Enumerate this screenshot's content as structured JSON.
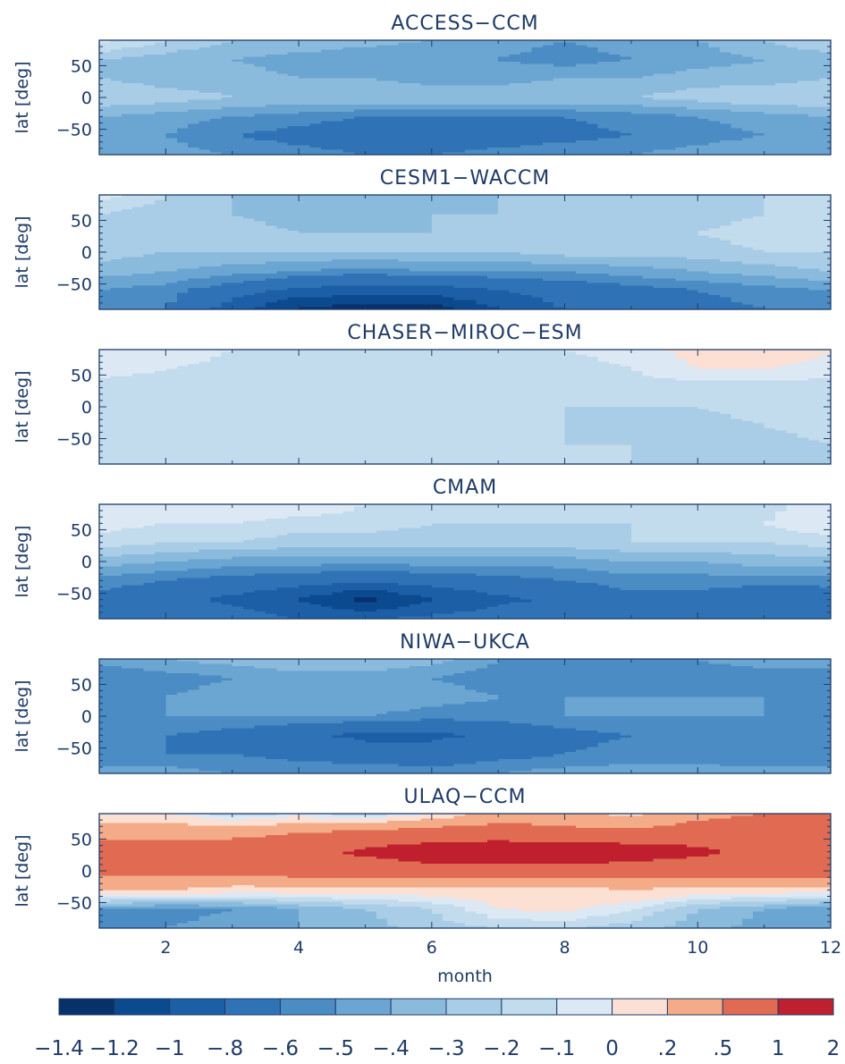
{
  "chart_data": {
    "type": "heatmap",
    "xlabel": "month",
    "ylabel": "lat [deg]",
    "xlim": [
      1,
      12
    ],
    "ylim": [
      -90,
      90
    ],
    "x_ticks": [
      "2",
      "4",
      "6",
      "8",
      "10",
      "12"
    ],
    "y_ticks": [
      "50",
      "0",
      "−50"
    ],
    "colorbar": {
      "levels": [
        "−1.4",
        "−1.2",
        "−1",
        "−.8",
        "−.6",
        "−.5",
        "−.4",
        "−.3",
        "−.2",
        "−.1",
        "0",
        ".2",
        ".5",
        "1",
        "2"
      ],
      "colors": [
        "#08306b",
        "#0b4a8f",
        "#1c5fa7",
        "#2f73b6",
        "#4a8cc3",
        "#6ba5d1",
        "#8bbbdc",
        "#a9cde6",
        "#c2dcee",
        "#dce9f4",
        "#fbe0d3",
        "#f4ab87",
        "#e06b52",
        "#c0202e"
      ]
    },
    "months": [
      1,
      2,
      3,
      4,
      5,
      6,
      7,
      8,
      9,
      10,
      11,
      12
    ],
    "latitudes": [
      90,
      60,
      30,
      0,
      -30,
      -60,
      -90
    ],
    "panels": [
      {
        "title": "ACCESS−CCM",
        "values": [
          [
            -0.05,
            -0.2,
            -0.3,
            -0.3,
            -0.35,
            -0.4,
            -0.45,
            -0.5,
            -0.45,
            -0.4,
            -0.3,
            -0.2
          ],
          [
            -0.3,
            -0.35,
            -0.4,
            -0.45,
            -0.5,
            -0.5,
            -0.5,
            -0.55,
            -0.5,
            -0.45,
            -0.4,
            -0.35
          ],
          [
            -0.3,
            -0.35,
            -0.35,
            -0.4,
            -0.4,
            -0.45,
            -0.45,
            -0.4,
            -0.4,
            -0.35,
            -0.35,
            -0.3
          ],
          [
            -0.2,
            -0.25,
            -0.3,
            -0.3,
            -0.3,
            -0.3,
            -0.3,
            -0.3,
            -0.3,
            -0.25,
            -0.2,
            -0.2
          ],
          [
            -0.4,
            -0.45,
            -0.5,
            -0.55,
            -0.6,
            -0.6,
            -0.6,
            -0.6,
            -0.55,
            -0.5,
            -0.45,
            -0.4
          ],
          [
            -0.5,
            -0.5,
            -0.6,
            -0.65,
            -0.7,
            -0.7,
            -0.7,
            -0.65,
            -0.6,
            -0.55,
            -0.5,
            -0.45
          ],
          [
            -0.4,
            -0.45,
            -0.5,
            -0.55,
            -0.6,
            -0.6,
            -0.55,
            -0.5,
            -0.5,
            -0.45,
            -0.4,
            -0.4
          ]
        ]
      },
      {
        "title": "CESM1−WACCM",
        "values": [
          [
            -0.05,
            -0.2,
            -0.3,
            -0.35,
            -0.4,
            -0.35,
            -0.3,
            -0.25,
            -0.2,
            -0.2,
            -0.2,
            -0.15
          ],
          [
            -0.2,
            -0.25,
            -0.3,
            -0.35,
            -0.35,
            -0.3,
            -0.3,
            -0.25,
            -0.25,
            -0.25,
            -0.2,
            -0.2
          ],
          [
            -0.2,
            -0.25,
            -0.25,
            -0.3,
            -0.3,
            -0.3,
            -0.25,
            -0.25,
            -0.25,
            -0.2,
            -0.15,
            -0.15
          ],
          [
            -0.25,
            -0.3,
            -0.3,
            -0.3,
            -0.3,
            -0.3,
            -0.3,
            -0.25,
            -0.25,
            -0.25,
            -0.2,
            -0.2
          ],
          [
            -0.35,
            -0.4,
            -0.45,
            -0.5,
            -0.55,
            -0.5,
            -0.5,
            -0.5,
            -0.45,
            -0.4,
            -0.35,
            -0.3
          ],
          [
            -0.5,
            -0.55,
            -0.7,
            -0.85,
            -0.9,
            -0.9,
            -0.8,
            -0.7,
            -0.65,
            -0.6,
            -0.55,
            -0.5
          ],
          [
            -0.55,
            -0.6,
            -0.9,
            -1.25,
            -1.3,
            -1.3,
            -1.0,
            -0.8,
            -0.7,
            -0.65,
            -0.6,
            -0.55
          ]
        ]
      },
      {
        "title": "CHASER−MIROC−ESM",
        "values": [
          [
            0.0,
            0.0,
            -0.1,
            -0.15,
            -0.2,
            -0.15,
            -0.15,
            -0.1,
            -0.05,
            0.05,
            0.15,
            0.0
          ],
          [
            -0.05,
            -0.1,
            -0.15,
            -0.15,
            -0.15,
            -0.15,
            -0.15,
            -0.15,
            -0.1,
            0.0,
            0.0,
            -0.05
          ],
          [
            -0.15,
            -0.15,
            -0.2,
            -0.2,
            -0.2,
            -0.2,
            -0.2,
            -0.2,
            -0.15,
            -0.15,
            -0.15,
            -0.15
          ],
          [
            -0.15,
            -0.15,
            -0.2,
            -0.2,
            -0.2,
            -0.2,
            -0.2,
            -0.2,
            -0.2,
            -0.2,
            -0.15,
            -0.15
          ],
          [
            -0.15,
            -0.2,
            -0.2,
            -0.2,
            -0.2,
            -0.2,
            -0.2,
            -0.2,
            -0.25,
            -0.25,
            -0.2,
            -0.15
          ],
          [
            -0.2,
            -0.2,
            -0.2,
            -0.2,
            -0.2,
            -0.2,
            -0.2,
            -0.2,
            -0.2,
            -0.25,
            -0.25,
            -0.2
          ],
          [
            -0.2,
            -0.2,
            -0.2,
            -0.2,
            -0.2,
            -0.2,
            -0.2,
            -0.2,
            -0.2,
            -0.2,
            -0.25,
            -0.25
          ]
        ]
      },
      {
        "title": "CMAM",
        "values": [
          [
            0.0,
            0.0,
            0.0,
            0.0,
            -0.1,
            -0.15,
            -0.15,
            -0.15,
            -0.15,
            -0.1,
            -0.15,
            0.0
          ],
          [
            -0.05,
            -0.1,
            -0.1,
            -0.15,
            -0.15,
            -0.2,
            -0.2,
            -0.2,
            -0.2,
            -0.15,
            -0.1,
            0.0
          ],
          [
            -0.15,
            -0.2,
            -0.2,
            -0.25,
            -0.25,
            -0.25,
            -0.25,
            -0.25,
            -0.2,
            -0.2,
            -0.2,
            -0.15
          ],
          [
            -0.35,
            -0.4,
            -0.45,
            -0.45,
            -0.45,
            -0.45,
            -0.45,
            -0.45,
            -0.4,
            -0.4,
            -0.35,
            -0.35
          ],
          [
            -0.55,
            -0.6,
            -0.65,
            -0.7,
            -0.75,
            -0.7,
            -0.65,
            -0.6,
            -0.55,
            -0.55,
            -0.55,
            -0.55
          ],
          [
            -0.65,
            -0.7,
            -0.85,
            -1.0,
            -1.3,
            -1.0,
            -0.85,
            -0.75,
            -0.65,
            -0.65,
            -0.75,
            -0.7
          ],
          [
            -0.6,
            -0.65,
            -0.7,
            -0.8,
            -0.8,
            -0.75,
            -0.7,
            -0.65,
            -0.6,
            -0.6,
            -0.65,
            -0.6
          ]
        ]
      },
      {
        "title": "NIWA−UKCA",
        "values": [
          [
            -0.45,
            -0.4,
            -0.35,
            -0.3,
            -0.3,
            -0.35,
            -0.5,
            -0.55,
            -0.55,
            -0.5,
            -0.45,
            -0.45
          ],
          [
            -0.6,
            -0.55,
            -0.5,
            -0.45,
            -0.45,
            -0.5,
            -0.55,
            -0.55,
            -0.55,
            -0.55,
            -0.55,
            -0.55
          ],
          [
            -0.5,
            -0.5,
            -0.45,
            -0.45,
            -0.4,
            -0.45,
            -0.5,
            -0.5,
            -0.5,
            -0.5,
            -0.5,
            -0.5
          ],
          [
            -0.55,
            -0.5,
            -0.5,
            -0.5,
            -0.5,
            -0.55,
            -0.55,
            -0.5,
            -0.5,
            -0.5,
            -0.5,
            -0.55
          ],
          [
            -0.6,
            -0.6,
            -0.65,
            -0.75,
            -0.85,
            -0.85,
            -0.75,
            -0.65,
            -0.6,
            -0.6,
            -0.6,
            -0.6
          ],
          [
            -0.6,
            -0.6,
            -0.6,
            -0.65,
            -0.7,
            -0.7,
            -0.65,
            -0.6,
            -0.55,
            -0.55,
            -0.6,
            -0.6
          ],
          [
            -0.45,
            -0.45,
            -0.5,
            -0.5,
            -0.5,
            -0.55,
            -0.5,
            -0.45,
            -0.45,
            -0.45,
            -0.45,
            -0.45
          ]
        ]
      },
      {
        "title": "ULAQ−CCM",
        "values": [
          [
            0.0,
            0.0,
            -0.2,
            -0.1,
            -0.2,
            0.0,
            0.3,
            0.3,
            0.1,
            0.4,
            0.5,
            0.5
          ],
          [
            0.4,
            0.4,
            0.4,
            0.5,
            0.6,
            0.7,
            0.7,
            0.6,
            0.6,
            0.7,
            0.7,
            0.6
          ],
          [
            0.7,
            0.7,
            0.7,
            0.8,
            1.1,
            1.3,
            1.4,
            1.4,
            1.3,
            1.1,
            0.9,
            0.8
          ],
          [
            0.6,
            0.6,
            0.6,
            0.7,
            0.7,
            0.8,
            0.8,
            0.8,
            0.7,
            0.7,
            0.7,
            0.7
          ],
          [
            0.2,
            0.2,
            0.1,
            0.1,
            0.1,
            0.1,
            0.1,
            0.1,
            0.2,
            0.1,
            0.1,
            0.1
          ],
          [
            -0.5,
            -0.55,
            -0.5,
            -0.4,
            -0.3,
            -0.2,
            0.0,
            0.05,
            -0.1,
            -0.3,
            -0.4,
            -0.5
          ],
          [
            -0.5,
            -0.5,
            -0.45,
            -0.4,
            -0.35,
            -0.25,
            -0.2,
            -0.2,
            -0.25,
            -0.35,
            -0.45,
            -0.5
          ]
        ]
      }
    ]
  }
}
